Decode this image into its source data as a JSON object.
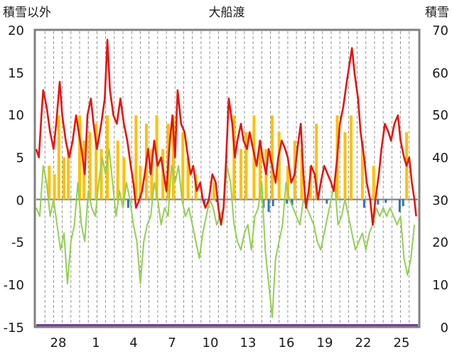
{
  "chart_data": {
    "type": "line",
    "title": "大船渡",
    "y_left_label": "積雪以外",
    "y_right_label": "積雪",
    "y_left_ticks": [
      "20",
      "15",
      "10",
      "5",
      "0",
      "-5",
      "-10",
      "-15"
    ],
    "y_right_ticks": [
      "70",
      "60",
      "50",
      "40",
      "30",
      "20",
      "10",
      "0"
    ],
    "ylim_left": [
      -15,
      20
    ],
    "ylim_right": [
      0,
      70
    ],
    "x_tick_labels": [
      "28",
      "1",
      "4",
      "7",
      "10",
      "13",
      "16",
      "19",
      "22",
      "25"
    ],
    "grid": "vertical dashed lines, one per day",
    "colors": {
      "red_line": "#e8130f",
      "green_line": "#92d050",
      "orange_bars": "#ffc000",
      "blue_bars": "#2e75b6",
      "purple_line": "#7030a0",
      "frame": "#808080",
      "zero_line": "#7f7f7f"
    },
    "red_series_samples": [
      [
        0,
        6
      ],
      [
        0.3,
        5
      ],
      [
        0.6,
        10
      ],
      [
        0.8,
        13
      ],
      [
        1.2,
        11
      ],
      [
        1.6,
        8
      ],
      [
        2.0,
        6
      ],
      [
        2.3,
        9
      ],
      [
        2.7,
        14
      ],
      [
        3.0,
        10
      ],
      [
        3.4,
        7
      ],
      [
        3.8,
        5
      ],
      [
        4.2,
        7
      ],
      [
        4.6,
        10
      ],
      [
        4.9,
        8
      ],
      [
        5.2,
        6
      ],
      [
        5.6,
        3
      ],
      [
        5.9,
        10
      ],
      [
        6.3,
        12
      ],
      [
        6.6,
        9
      ],
      [
        7.0,
        6
      ],
      [
        7.5,
        9
      ],
      [
        7.9,
        12
      ],
      [
        8.2,
        19
      ],
      [
        8.5,
        13
      ],
      [
        8.9,
        10
      ],
      [
        9.3,
        9
      ],
      [
        9.7,
        12
      ],
      [
        10.1,
        9
      ],
      [
        10.5,
        7
      ],
      [
        10.9,
        4
      ],
      [
        11.2,
        2
      ],
      [
        11.5,
        -1
      ],
      [
        11.9,
        0
      ],
      [
        12.2,
        1
      ],
      [
        12.5,
        3
      ],
      [
        12.9,
        6
      ],
      [
        13.2,
        3
      ],
      [
        13.6,
        7
      ],
      [
        14.0,
        4
      ],
      [
        14.4,
        5
      ],
      [
        14.7,
        3
      ],
      [
        15.0,
        1
      ],
      [
        15.4,
        7
      ],
      [
        15.7,
        10
      ],
      [
        16.0,
        5
      ],
      [
        16.3,
        13
      ],
      [
        16.7,
        9
      ],
      [
        17.1,
        8
      ],
      [
        17.5,
        5
      ],
      [
        17.8,
        3
      ],
      [
        18.1,
        4
      ],
      [
        18.5,
        1
      ],
      [
        18.9,
        2
      ],
      [
        19.2,
        0
      ],
      [
        19.5,
        -1
      ],
      [
        19.9,
        0
      ],
      [
        20.3,
        3
      ],
      [
        20.7,
        2
      ],
      [
        21.0,
        -1
      ],
      [
        21.3,
        -3
      ],
      [
        21.6,
        -1
      ],
      [
        21.9,
        5
      ],
      [
        22.2,
        12
      ],
      [
        22.6,
        9
      ],
      [
        22.9,
        5
      ],
      [
        23.2,
        7
      ],
      [
        23.6,
        9
      ],
      [
        23.9,
        7
      ],
      [
        24.3,
        6
      ],
      [
        24.6,
        8
      ],
      [
        25.0,
        6
      ],
      [
        25.4,
        4
      ],
      [
        25.8,
        7
      ],
      [
        26.1,
        5
      ],
      [
        26.5,
        3
      ],
      [
        26.8,
        6
      ],
      [
        27.2,
        4
      ],
      [
        27.6,
        2
      ],
      [
        27.9,
        5
      ],
      [
        28.3,
        7
      ],
      [
        28.7,
        6
      ],
      [
        29.0,
        5
      ],
      [
        29.4,
        2
      ],
      [
        29.8,
        3
      ],
      [
        30.1,
        6
      ],
      [
        30.5,
        9
      ],
      [
        30.8,
        3
      ],
      [
        31.1,
        -1
      ],
      [
        31.4,
        1
      ],
      [
        31.7,
        4
      ],
      [
        32.1,
        3
      ],
      [
        32.5,
        0
      ],
      [
        32.8,
        2
      ],
      [
        33.2,
        4
      ],
      [
        33.6,
        3
      ],
      [
        34.0,
        2
      ],
      [
        34.3,
        1
      ],
      [
        34.7,
        5
      ],
      [
        35.0,
        9
      ],
      [
        35.4,
        11
      ],
      [
        35.8,
        14
      ],
      [
        36.1,
        16
      ],
      [
        36.4,
        18
      ],
      [
        36.7,
        15
      ],
      [
        37.1,
        12
      ],
      [
        37.4,
        8
      ],
      [
        37.8,
        5
      ],
      [
        38.1,
        2
      ],
      [
        38.5,
        0
      ],
      [
        38.8,
        -3
      ],
      [
        39.1,
        0
      ],
      [
        39.5,
        3
      ],
      [
        39.8,
        6
      ],
      [
        40.2,
        9
      ],
      [
        40.6,
        8
      ],
      [
        40.9,
        7
      ],
      [
        41.3,
        9
      ],
      [
        41.7,
        10
      ],
      [
        42.0,
        7
      ],
      [
        42.4,
        5
      ],
      [
        42.7,
        4
      ],
      [
        43.0,
        5
      ],
      [
        43.3,
        2
      ],
      [
        43.6,
        0
      ],
      [
        43.8,
        -2
      ]
    ],
    "green_series_samples": [
      [
        0,
        -1
      ],
      [
        0.4,
        -2
      ],
      [
        0.8,
        4
      ],
      [
        1.2,
        2
      ],
      [
        1.6,
        -2
      ],
      [
        2.0,
        0
      ],
      [
        2.4,
        -3
      ],
      [
        2.8,
        -6
      ],
      [
        3.2,
        -4
      ],
      [
        3.6,
        -10
      ],
      [
        4.0,
        -5
      ],
      [
        4.4,
        -3
      ],
      [
        4.8,
        2
      ],
      [
        5.2,
        -3
      ],
      [
        5.6,
        -5
      ],
      [
        6.0,
        1
      ],
      [
        6.4,
        -1
      ],
      [
        6.8,
        -2
      ],
      [
        7.2,
        2
      ],
      [
        7.6,
        5
      ],
      [
        8.0,
        3
      ],
      [
        8.4,
        6
      ],
      [
        8.8,
        2
      ],
      [
        9.2,
        -2
      ],
      [
        9.6,
        1
      ],
      [
        10.0,
        -1
      ],
      [
        10.4,
        2
      ],
      [
        10.8,
        0
      ],
      [
        11.2,
        -3
      ],
      [
        11.6,
        -5
      ],
      [
        12.0,
        -10
      ],
      [
        12.4,
        -5
      ],
      [
        12.8,
        -3
      ],
      [
        13.2,
        -2
      ],
      [
        13.6,
        2
      ],
      [
        14.0,
        0
      ],
      [
        14.4,
        -3
      ],
      [
        14.8,
        -1
      ],
      [
        15.2,
        -2
      ],
      [
        15.6,
        4
      ],
      [
        16.0,
        2
      ],
      [
        16.4,
        4
      ],
      [
        16.8,
        0
      ],
      [
        17.2,
        -2
      ],
      [
        17.6,
        -1
      ],
      [
        18.0,
        -3
      ],
      [
        18.4,
        -5
      ],
      [
        18.8,
        -7
      ],
      [
        19.2,
        -4
      ],
      [
        19.6,
        -2
      ],
      [
        20.0,
        0
      ],
      [
        20.4,
        -1
      ],
      [
        20.8,
        -3
      ],
      [
        21.2,
        -2
      ],
      [
        21.6,
        -1
      ],
      [
        22.0,
        4
      ],
      [
        22.4,
        2
      ],
      [
        22.8,
        -3
      ],
      [
        23.2,
        -5
      ],
      [
        23.6,
        -6
      ],
      [
        24.0,
        -4
      ],
      [
        24.4,
        -3
      ],
      [
        24.8,
        -6
      ],
      [
        25.2,
        -2
      ],
      [
        25.6,
        -1
      ],
      [
        26.0,
        2
      ],
      [
        26.4,
        -6
      ],
      [
        26.8,
        -10
      ],
      [
        27.2,
        -14
      ],
      [
        27.6,
        -7
      ],
      [
        28.0,
        -5
      ],
      [
        28.4,
        -3
      ],
      [
        28.8,
        2
      ],
      [
        29.2,
        0
      ],
      [
        29.6,
        -1
      ],
      [
        30.0,
        -2
      ],
      [
        30.4,
        -3
      ],
      [
        30.8,
        0
      ],
      [
        31.2,
        -1
      ],
      [
        31.6,
        -2
      ],
      [
        32.0,
        -3
      ],
      [
        32.4,
        -5
      ],
      [
        32.8,
        -6
      ],
      [
        33.2,
        -4
      ],
      [
        33.6,
        -2
      ],
      [
        34.0,
        0
      ],
      [
        34.4,
        2
      ],
      [
        34.8,
        -3
      ],
      [
        35.2,
        -2
      ],
      [
        35.6,
        0
      ],
      [
        36.0,
        -2
      ],
      [
        36.4,
        -4
      ],
      [
        36.8,
        -6
      ],
      [
        37.2,
        -5
      ],
      [
        37.6,
        -4
      ],
      [
        38.0,
        -6
      ],
      [
        38.4,
        -4
      ],
      [
        38.8,
        -3
      ],
      [
        39.2,
        -1
      ],
      [
        39.6,
        -2
      ],
      [
        40.0,
        -1
      ],
      [
        40.4,
        -2
      ],
      [
        40.8,
        -1
      ],
      [
        41.2,
        -2
      ],
      [
        41.6,
        -3
      ],
      [
        42.0,
        -2
      ],
      [
        42.4,
        -7
      ],
      [
        42.8,
        -9
      ],
      [
        43.2,
        -7
      ],
      [
        43.6,
        -3
      ]
    ],
    "orange_bars": [
      [
        1.5,
        4
      ],
      [
        2.1,
        3
      ],
      [
        2.6,
        10
      ],
      [
        3.2,
        5
      ],
      [
        3.7,
        6
      ],
      [
        5.0,
        10
      ],
      [
        5.5,
        7
      ],
      [
        6.2,
        8
      ],
      [
        6.9,
        9
      ],
      [
        7.5,
        6
      ],
      [
        8.2,
        10
      ],
      [
        9.4,
        7
      ],
      [
        10.1,
        5
      ],
      [
        11.5,
        10
      ],
      [
        12.0,
        4
      ],
      [
        12.7,
        9
      ],
      [
        13.3,
        6
      ],
      [
        13.9,
        10
      ],
      [
        14.6,
        6
      ],
      [
        15.2,
        9
      ],
      [
        15.8,
        10
      ],
      [
        16.9,
        8
      ],
      [
        17.5,
        5
      ],
      [
        18.4,
        3
      ],
      [
        20.5,
        2
      ],
      [
        22.8,
        10
      ],
      [
        23.6,
        6
      ],
      [
        24.2,
        8
      ],
      [
        25.1,
        10
      ],
      [
        25.8,
        7
      ],
      [
        26.5,
        6
      ],
      [
        27.2,
        10
      ],
      [
        28.0,
        8
      ],
      [
        29.0,
        4
      ],
      [
        29.8,
        7
      ],
      [
        30.6,
        6
      ],
      [
        31.6,
        4
      ],
      [
        32.3,
        9
      ],
      [
        34.7,
        10
      ],
      [
        35.6,
        8
      ],
      [
        36.3,
        10
      ],
      [
        37.6,
        7
      ],
      [
        38.9,
        4
      ],
      [
        42.7,
        8
      ]
    ],
    "blue_bars": [
      [
        10.6,
        -1
      ],
      [
        19.4,
        -0.5
      ],
      [
        20.8,
        -0.3
      ],
      [
        26.2,
        -1
      ],
      [
        26.8,
        -1.5
      ],
      [
        27.3,
        -0.8
      ],
      [
        28.9,
        -0.5
      ],
      [
        29.5,
        -0.7
      ],
      [
        33.5,
        -0.5
      ],
      [
        37.8,
        -1
      ],
      [
        39.4,
        -0.6
      ],
      [
        40.3,
        -0.4
      ],
      [
        41.9,
        -1.5
      ],
      [
        42.3,
        -0.8
      ]
    ],
    "snow_depth_right_axis_value": 0,
    "day_count": 44
  }
}
